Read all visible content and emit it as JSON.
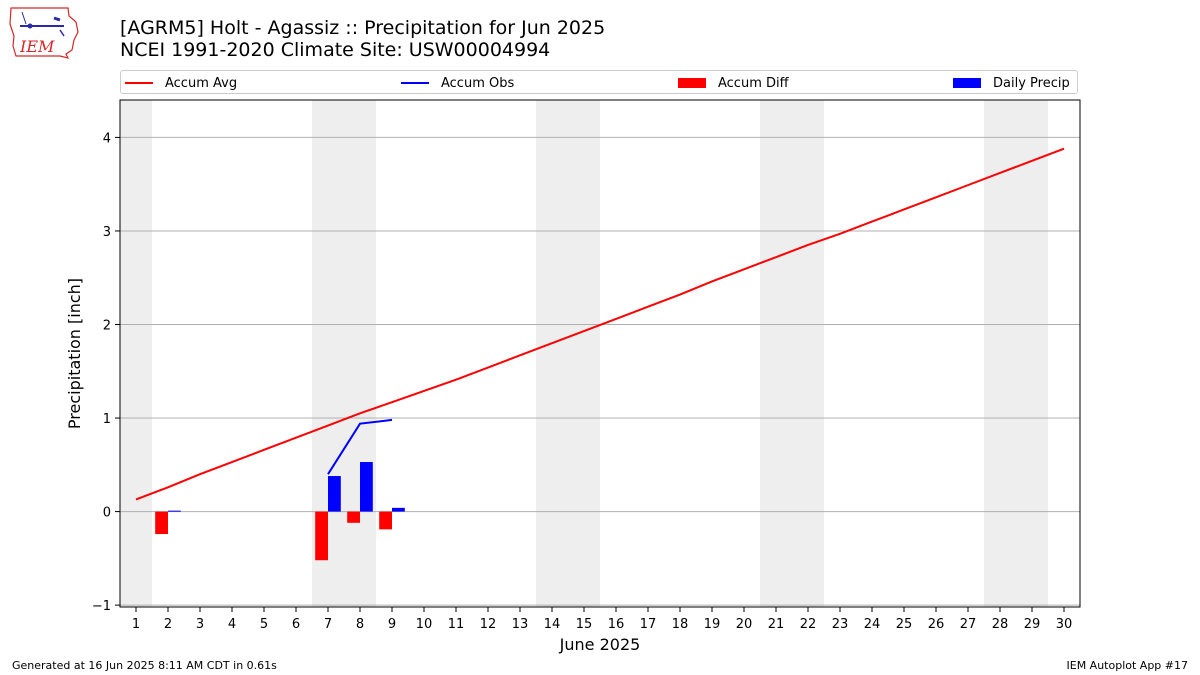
{
  "header": {
    "title_line1": "[AGRM5] Holt - Agassiz :: Precipitation for Jun 2025",
    "title_line2": "NCEI 1991-2020 Climate Site: USW00004994"
  },
  "logo": {
    "text": "IEM"
  },
  "legend": [
    {
      "label": "Accum Avg",
      "color": "#ff0000",
      "kind": "line"
    },
    {
      "label": "Accum Obs",
      "color": "#0000ff",
      "kind": "line"
    },
    {
      "label": "Accum Diff",
      "color": "#ff0000",
      "kind": "patch"
    },
    {
      "label": "Daily Precip",
      "color": "#0000ff",
      "kind": "patch"
    }
  ],
  "footer": {
    "left": "Generated at 16 Jun 2025 8:11 AM CDT in 0.61s",
    "right": "IEM Autoplot App #17"
  },
  "chart_data": {
    "type": "bar",
    "xlabel": "June 2025",
    "ylabel": "Precipitation [inch]",
    "xlim": [
      0.5,
      30.5
    ],
    "ylim": [
      -1.02,
      4.4
    ],
    "x_ticks": [
      1,
      2,
      3,
      4,
      5,
      6,
      7,
      8,
      9,
      10,
      11,
      12,
      13,
      14,
      15,
      16,
      17,
      18,
      19,
      20,
      21,
      22,
      23,
      24,
      25,
      26,
      27,
      28,
      29,
      30
    ],
    "y_ticks": [
      -1,
      0,
      1,
      2,
      3,
      4
    ],
    "grid": "horizontal",
    "legend_position": "top",
    "weekend_shading": [
      [
        0.5,
        1.5
      ],
      [
        6.5,
        8.5
      ],
      [
        13.5,
        15.5
      ],
      [
        20.5,
        22.5
      ],
      [
        27.5,
        29.5
      ]
    ],
    "series": [
      {
        "name": "Accum Avg",
        "kind": "line",
        "color": "#ff0000",
        "x": [
          1,
          2,
          3,
          4,
          5,
          6,
          7,
          8,
          9,
          10,
          11,
          12,
          13,
          14,
          15,
          16,
          17,
          18,
          19,
          20,
          21,
          22,
          23,
          24,
          25,
          26,
          27,
          28,
          29,
          30
        ],
        "values": [
          0.13,
          0.26,
          0.4,
          0.53,
          0.66,
          0.79,
          0.92,
          1.05,
          1.17,
          1.29,
          1.41,
          1.54,
          1.67,
          1.8,
          1.93,
          2.06,
          2.19,
          2.32,
          2.46,
          2.59,
          2.72,
          2.85,
          2.97,
          3.1,
          3.23,
          3.36,
          3.49,
          3.62,
          3.75,
          3.88
        ]
      },
      {
        "name": "Accum Obs",
        "kind": "line",
        "color": "#0000ff",
        "x": [
          7,
          8,
          9
        ],
        "values": [
          0.4,
          0.94,
          0.98
        ]
      },
      {
        "name": "Accum Diff",
        "kind": "bar",
        "color": "#ff0000",
        "x": [
          2,
          7,
          8,
          9
        ],
        "values": [
          -0.24,
          -0.52,
          -0.12,
          -0.19
        ]
      },
      {
        "name": "Daily Precip",
        "kind": "bar",
        "color": "#0000ff",
        "x": [
          2,
          7,
          8,
          9
        ],
        "values": [
          0.01,
          0.38,
          0.53,
          0.04
        ]
      }
    ]
  }
}
